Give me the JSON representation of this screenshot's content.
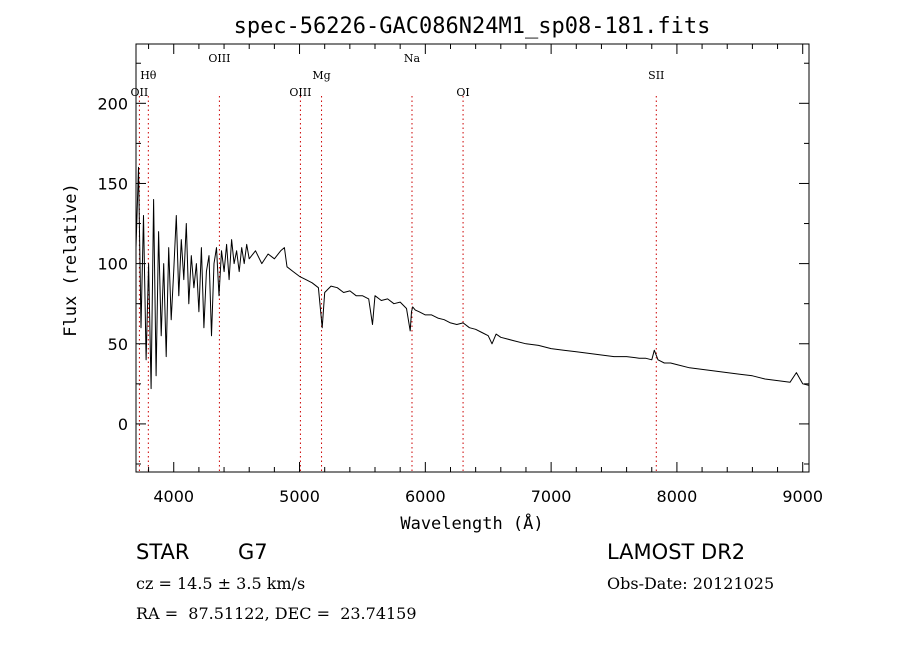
{
  "chart_data": {
    "type": "line",
    "title": "spec-56226-GAC086N24M1_sp08-181.fits",
    "xlabel": "Wavelength (Å)",
    "ylabel": "Flux (relative)",
    "xlim": [
      3700,
      9050
    ],
    "ylim": [
      -30,
      237
    ],
    "xticks": [
      4000,
      5000,
      6000,
      7000,
      8000,
      9000
    ],
    "yticks": [
      0,
      50,
      100,
      150,
      200
    ],
    "grid": false,
    "line_color": "#000000",
    "marker_color": "#cc0000",
    "lines": [
      {
        "name": "OII",
        "wavelength": 3727,
        "label_row": "low"
      },
      {
        "name": "Hθ",
        "wavelength": 3798,
        "label_row": "mid"
      },
      {
        "name": "OIII",
        "wavelength": 4363,
        "label_row": "high"
      },
      {
        "name": "OIII",
        "wavelength": 5007,
        "label_row": "low"
      },
      {
        "name": "Mg",
        "wavelength": 5175,
        "label_row": "mid"
      },
      {
        "name": "Na",
        "wavelength": 5894,
        "label_row": "high"
      },
      {
        "name": "OI",
        "wavelength": 6300,
        "label_row": "low"
      },
      {
        "name": "SII",
        "wavelength": 7836,
        "label_row": "mid"
      }
    ],
    "series": [
      {
        "x": [
          3700,
          3720,
          3740,
          3760,
          3780,
          3800,
          3820,
          3840,
          3860,
          3880,
          3900,
          3920,
          3940,
          3960,
          3980,
          4000,
          4020,
          4040,
          4060,
          4080,
          4100,
          4120,
          4140,
          4160,
          4180,
          4200,
          4220,
          4240,
          4260,
          4280,
          4300,
          4320,
          4340,
          4360,
          4380,
          4400,
          4420,
          4440,
          4460,
          4480,
          4500,
          4520,
          4540,
          4560,
          4580,
          4600,
          4650,
          4700,
          4750,
          4800,
          4850,
          4880,
          4900,
          4950,
          5000,
          5050,
          5100,
          5150,
          5180,
          5200,
          5250,
          5300,
          5350,
          5400,
          5450,
          5500,
          5550,
          5580,
          5600,
          5650,
          5700,
          5750,
          5800,
          5850,
          5880,
          5890,
          5900,
          5920,
          5950,
          6000,
          6050,
          6100,
          6150,
          6200,
          6250,
          6300,
          6350,
          6400,
          6450,
          6500,
          6530,
          6563,
          6600,
          6700,
          6800,
          6900,
          7000,
          7100,
          7200,
          7300,
          7400,
          7500,
          7600,
          7700,
          7750,
          7800,
          7820,
          7850,
          7900,
          7950,
          8000,
          8100,
          8200,
          8300,
          8400,
          8500,
          8600,
          8700,
          8800,
          8900,
          8950,
          9000,
          9050
        ],
        "y": [
          110,
          160,
          60,
          130,
          40,
          100,
          22,
          140,
          30,
          120,
          55,
          100,
          42,
          110,
          65,
          95,
          130,
          80,
          115,
          90,
          125,
          75,
          105,
          85,
          100,
          70,
          110,
          60,
          95,
          105,
          55,
          100,
          110,
          80,
          108,
          95,
          112,
          90,
          115,
          100,
          108,
          95,
          110,
          100,
          112,
          103,
          108,
          100,
          106,
          103,
          108,
          110,
          98,
          95,
          92,
          90,
          88,
          85,
          60,
          82,
          86,
          85,
          82,
          83,
          80,
          80,
          78,
          62,
          80,
          77,
          78,
          75,
          76,
          72,
          58,
          70,
          73,
          71,
          70,
          68,
          68,
          66,
          65,
          63,
          62,
          63,
          60,
          59,
          57,
          55,
          50,
          56,
          54,
          52,
          50,
          49,
          47,
          46,
          45,
          44,
          43,
          42,
          42,
          41,
          41,
          40,
          46,
          40,
          38,
          38,
          37,
          35,
          34,
          33,
          32,
          31,
          30,
          28,
          27,
          26,
          32,
          25,
          24
        ]
      }
    ]
  },
  "info": {
    "object_class": "STAR",
    "subclass": "G7",
    "survey": "LAMOST DR2",
    "redshift_text": "cz = 14.5 ± 3.5 km/s",
    "obs_date": "Obs-Date: 20121025",
    "coords": "RA =  87.51122, DEC =  23.74159"
  }
}
